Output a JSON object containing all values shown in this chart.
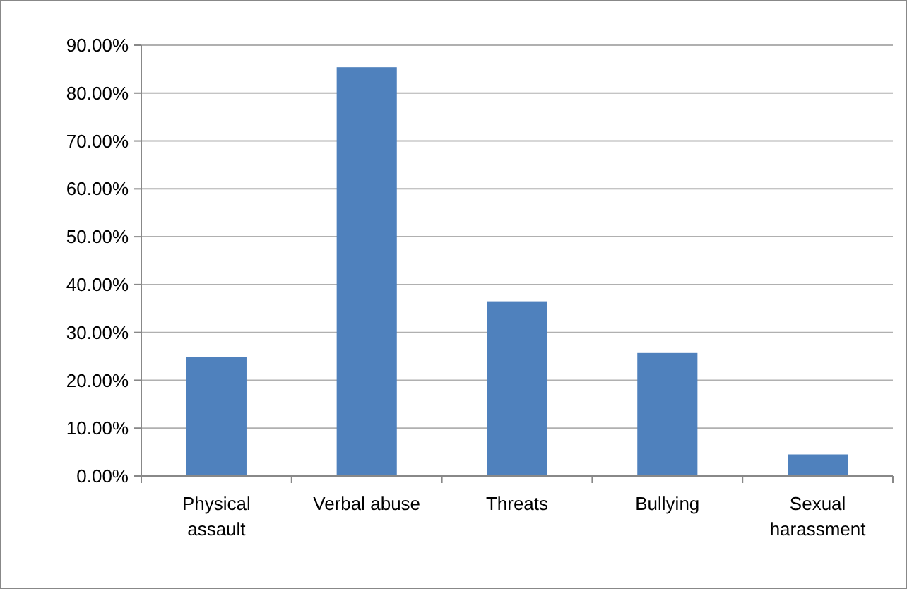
{
  "chart_data": {
    "type": "bar",
    "categories": [
      "Physical assault",
      "Verbal abuse",
      "Threats",
      "Bullying",
      "Sexual harassment"
    ],
    "values": [
      24.8,
      85.4,
      36.5,
      25.7,
      4.5
    ],
    "color": "#4f81bd",
    "ylim": [
      0,
      90
    ],
    "yticks": [
      {
        "value": 0,
        "label": "0.00%"
      },
      {
        "value": 10,
        "label": "10.00%"
      },
      {
        "value": 20,
        "label": "20.00%"
      },
      {
        "value": 30,
        "label": "30.00%"
      },
      {
        "value": 40,
        "label": "40.00%"
      },
      {
        "value": 50,
        "label": "50.00%"
      },
      {
        "value": 60,
        "label": "60.00%"
      },
      {
        "value": 70,
        "label": "70.00%"
      },
      {
        "value": 80,
        "label": "80.00%"
      },
      {
        "value": 90,
        "label": "90.00%"
      }
    ],
    "grid": "y"
  }
}
